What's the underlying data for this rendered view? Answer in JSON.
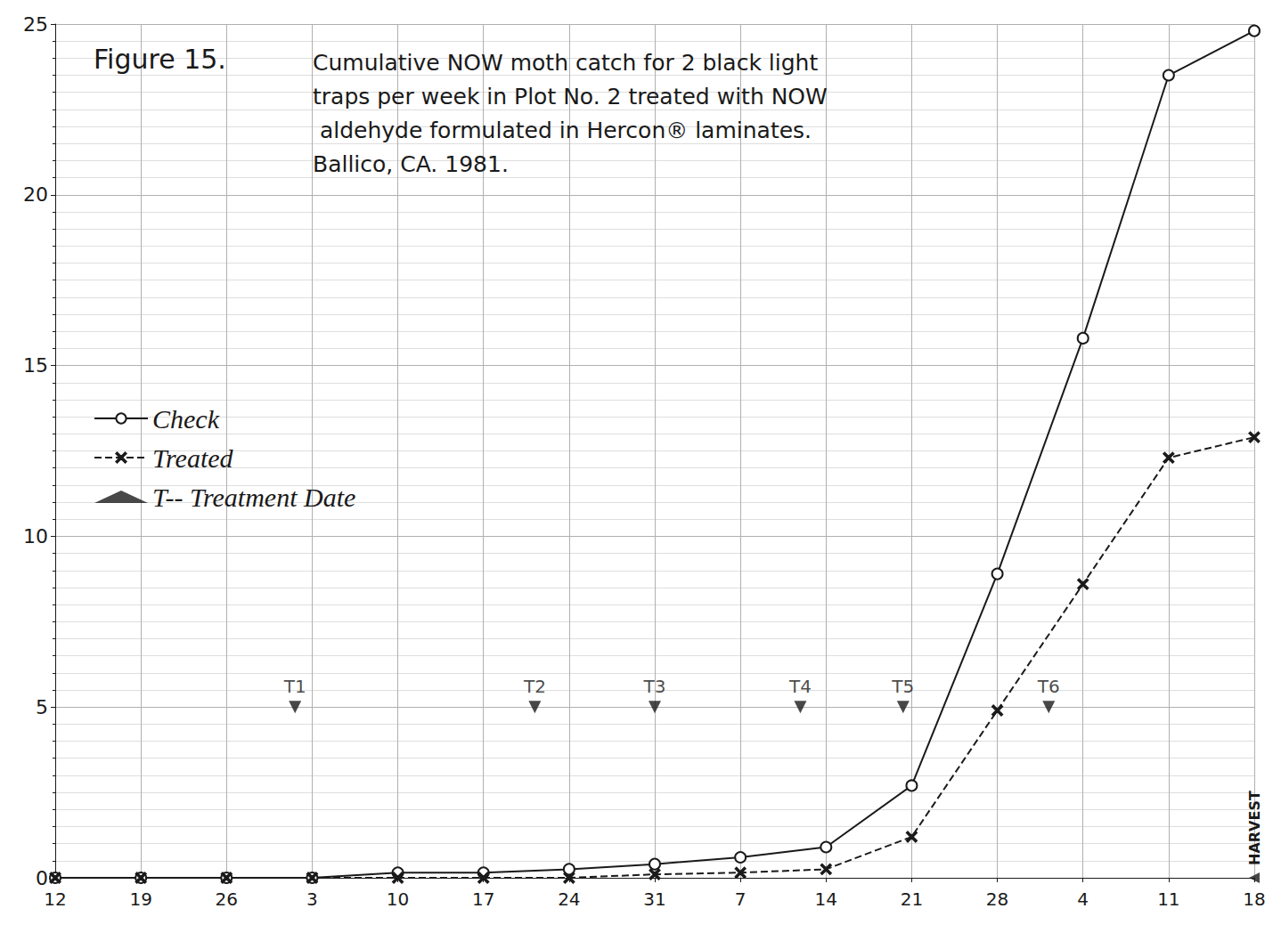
{
  "chart_data": {
    "type": "line",
    "title": "Figure 15.",
    "subtitle": "Cumulative NOW moth catch for 2 black light traps per week in Plot No. 2 treated with NOW aldehyde formulated in Hercon® laminates. Ballico, CA. 1981.",
    "categories": [
      "12",
      "19",
      "26",
      "3",
      "10",
      "17",
      "24",
      "31",
      "7",
      "14",
      "21",
      "28",
      "4",
      "11",
      "18"
    ],
    "ylim": [
      0,
      25
    ],
    "yticks": [
      0,
      5,
      10,
      15,
      20,
      25
    ],
    "grid": true,
    "legend": "left",
    "series": [
      {
        "name": "Check",
        "color": "#1a1a1a",
        "marker": "circle",
        "line_style": "solid",
        "values": [
          0,
          0,
          0,
          0,
          0.15,
          0.15,
          0.25,
          0.4,
          0.6,
          0.9,
          2.7,
          8.9,
          15.8,
          23.5,
          24.8
        ]
      },
      {
        "name": "Treated",
        "color": "#1a1a1a",
        "marker": "x",
        "line_style": "dashed",
        "values": [
          0,
          0,
          0,
          0,
          0,
          0,
          0,
          0.1,
          0.15,
          0.25,
          1.2,
          4.9,
          8.6,
          12.3,
          12.9
        ]
      },
      {
        "name": "T-- Treatment Date",
        "type": "scatter",
        "color": "#1a1a1a",
        "marker": "triangle",
        "x": [
          2.8,
          5.6,
          7.0,
          8.7,
          9.9,
          11.6
        ],
        "values": [
          5,
          5,
          5,
          5,
          5,
          5
        ],
        "labels": [
          "T1",
          "T2",
          "T3",
          "T4",
          "T5",
          "T6"
        ]
      }
    ],
    "annotations": [
      {
        "text": "HARVEST",
        "x": 14,
        "y": 0
      }
    ]
  }
}
